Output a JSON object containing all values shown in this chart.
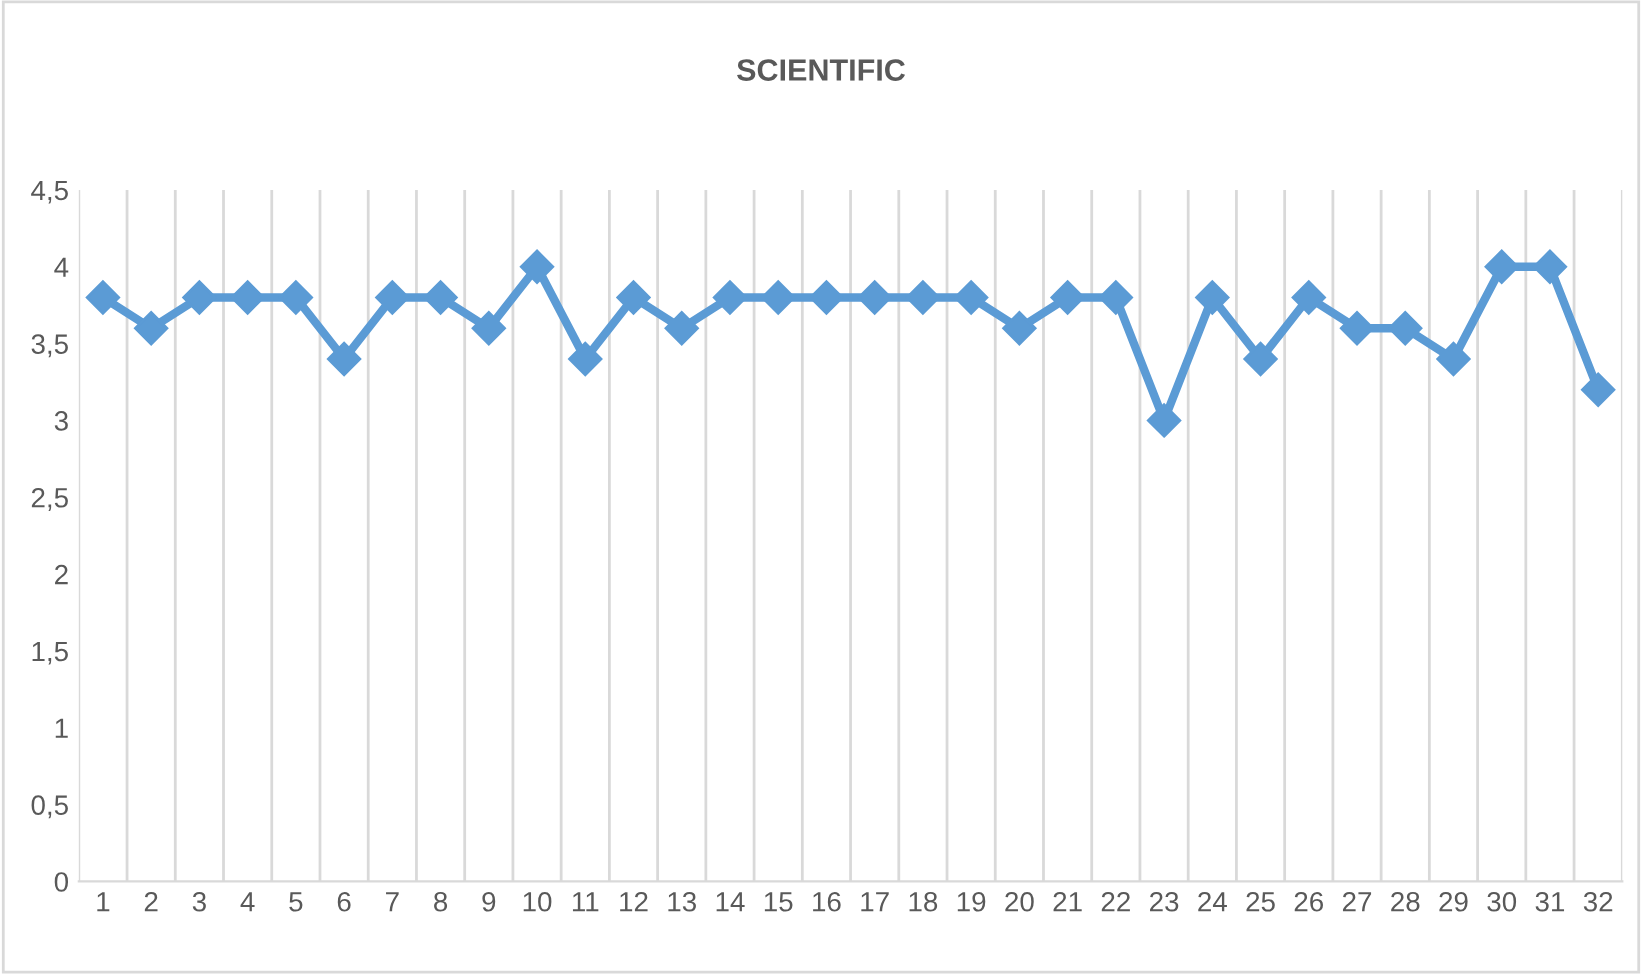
{
  "chart_data": {
    "type": "line",
    "title": "SCIENTIFIC",
    "categories": [
      "1",
      "2",
      "3",
      "4",
      "5",
      "6",
      "7",
      "8",
      "9",
      "10",
      "11",
      "12",
      "13",
      "14",
      "15",
      "16",
      "17",
      "18",
      "19",
      "20",
      "21",
      "22",
      "23",
      "24",
      "25",
      "26",
      "27",
      "28",
      "29",
      "30",
      "31",
      "32"
    ],
    "series": [
      {
        "color": "#5b9bd5",
        "values": [
          3.8,
          3.6,
          3.8,
          3.8,
          3.8,
          3.4,
          3.8,
          3.8,
          3.6,
          4,
          3.4,
          3.8,
          3.6,
          3.8,
          3.8,
          3.8,
          3.8,
          3.8,
          3.8,
          3.6,
          3.8,
          3.8,
          3.0,
          3.8,
          3.4,
          3.8,
          3.6,
          3.6,
          3.4,
          4,
          4,
          3.2
        ]
      }
    ],
    "ylim": [
      0,
      4.5
    ],
    "yticks": [
      0,
      {
        "value": 0.5,
        "label": "0,5"
      },
      1,
      {
        "value": 1.5,
        "label": "1,5"
      },
      2,
      {
        "value": 2.5,
        "label": "2,5"
      },
      3,
      {
        "value": 3.5,
        "label": "3,5"
      },
      4,
      {
        "value": 4.5,
        "label": "4,5"
      }
    ],
    "grid": "x",
    "legend": false,
    "marker": "diamond",
    "line_style": "solid"
  }
}
